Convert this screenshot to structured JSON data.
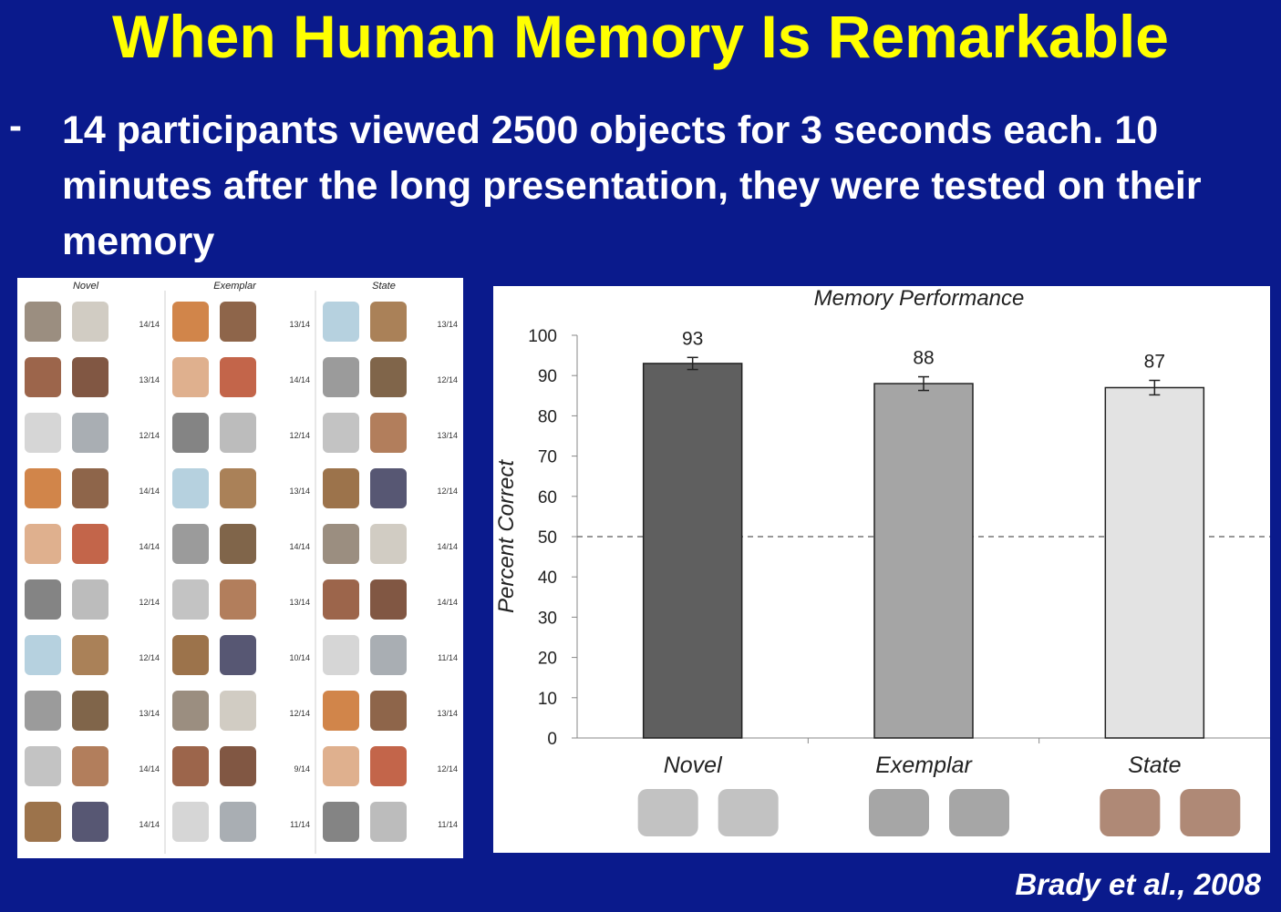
{
  "slide": {
    "title": "When Human Memory Is Remarkable",
    "bullet_dash": "-",
    "bullet_text": "14 participants viewed 2500 objects for 3 seconds each. 10 minutes after the long presentation, they were tested on their memory",
    "citation": "Brady et al., 2008"
  },
  "stimuli_panel": {
    "columns": [
      {
        "header": "Novel",
        "scores": [
          "14/14",
          "13/14",
          "12/14",
          "14/14",
          "14/14",
          "12/14",
          "12/14",
          "13/14",
          "14/14",
          "14/14"
        ]
      },
      {
        "header": "Exemplar",
        "scores": [
          "13/14",
          "14/14",
          "12/14",
          "13/14",
          "14/14",
          "13/14",
          "10/14",
          "12/14",
          "9/14",
          "11/14"
        ]
      },
      {
        "header": "State",
        "scores": [
          "13/14",
          "12/14",
          "13/14",
          "12/14",
          "14/14",
          "14/14",
          "11/14",
          "13/14",
          "12/14",
          "11/14"
        ]
      }
    ]
  },
  "chart_data": {
    "type": "bar",
    "title": "Memory Performance",
    "xlabel": "",
    "ylabel": "Percent Correct",
    "categories": [
      "Novel",
      "Exemplar",
      "State"
    ],
    "values": [
      93,
      88,
      87
    ],
    "data_labels": [
      "93",
      "88",
      "87"
    ],
    "errors": [
      1.5,
      1.7,
      1.8
    ],
    "bar_colors": [
      "#5f5f5f",
      "#a5a5a5",
      "#e3e3e3"
    ],
    "ylim": [
      0,
      100
    ],
    "yticks": [
      0,
      10,
      20,
      30,
      40,
      50,
      60,
      70,
      80,
      90,
      100
    ],
    "reference_line": 50,
    "grid": false
  }
}
